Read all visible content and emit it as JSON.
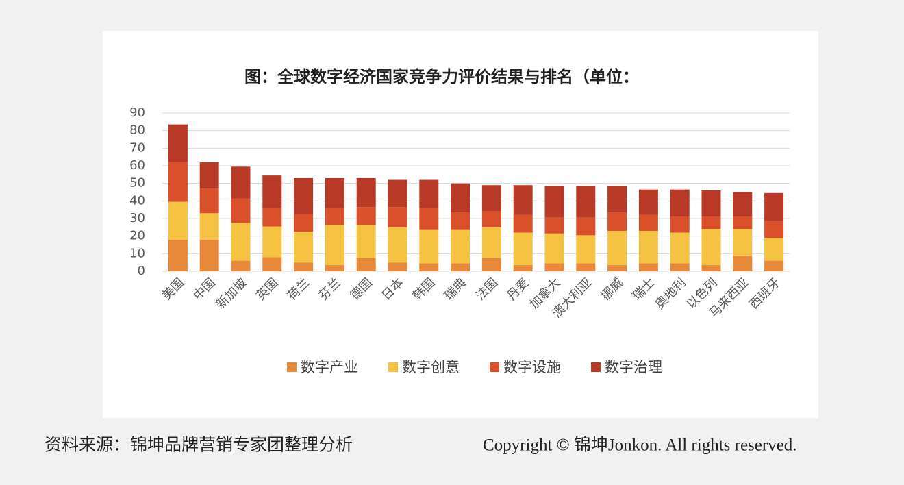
{
  "chart_data": {
    "type": "stacked-bar",
    "title": "图：全球数字经济国家竞争力评价结果与排名（单位：",
    "categories": [
      "美国",
      "中国",
      "新加坡",
      "英国",
      "荷兰",
      "芬兰",
      "德国",
      "日本",
      "韩国",
      "瑞典",
      "法国",
      "丹麦",
      "加拿大",
      "澳大利亚",
      "挪威",
      "瑞士",
      "奥地利",
      "以色列",
      "马来西亚",
      "西班牙"
    ],
    "series": [
      {
        "name": "数字产业",
        "color": "#e8893a",
        "values": [
          18,
          18,
          6,
          8,
          5,
          3.5,
          7.5,
          5,
          4.5,
          4.5,
          7.5,
          3.5,
          4.5,
          4.5,
          3.5,
          4.5,
          4.5,
          3.5,
          9,
          6
        ]
      },
      {
        "name": "数字创意",
        "color": "#f5c242",
        "values": [
          21.5,
          15,
          21.5,
          17.5,
          17.5,
          23,
          19,
          20,
          19,
          19,
          17.5,
          18.5,
          17,
          16,
          19.5,
          18.5,
          17.5,
          20.5,
          15,
          13
        ]
      },
      {
        "name": "数字设施",
        "color": "#d9502a",
        "values": [
          22.5,
          14,
          14,
          10.5,
          10,
          9.5,
          10,
          11.5,
          12.5,
          10,
          9,
          10,
          9,
          10,
          10.5,
          9,
          9,
          7,
          7,
          9.5
        ]
      },
      {
        "name": "数字治理",
        "color": "#b83a26",
        "values": [
          21.5,
          15,
          18,
          18.5,
          20.5,
          17,
          16.5,
          15.5,
          16,
          16.5,
          15,
          17,
          18,
          18,
          15,
          14.5,
          15.5,
          15,
          14,
          16
        ]
      }
    ],
    "ylim": [
      0,
      90
    ],
    "yticks": [
      0,
      10,
      20,
      30,
      40,
      50,
      60,
      70,
      80,
      90
    ],
    "grid": true,
    "legend": "bottom"
  },
  "footer": {
    "source": "资料来源：锦坤品牌营销专家团整理分析",
    "copyright": "Copyright © 锦坤Jonkon. All rights reserved."
  }
}
